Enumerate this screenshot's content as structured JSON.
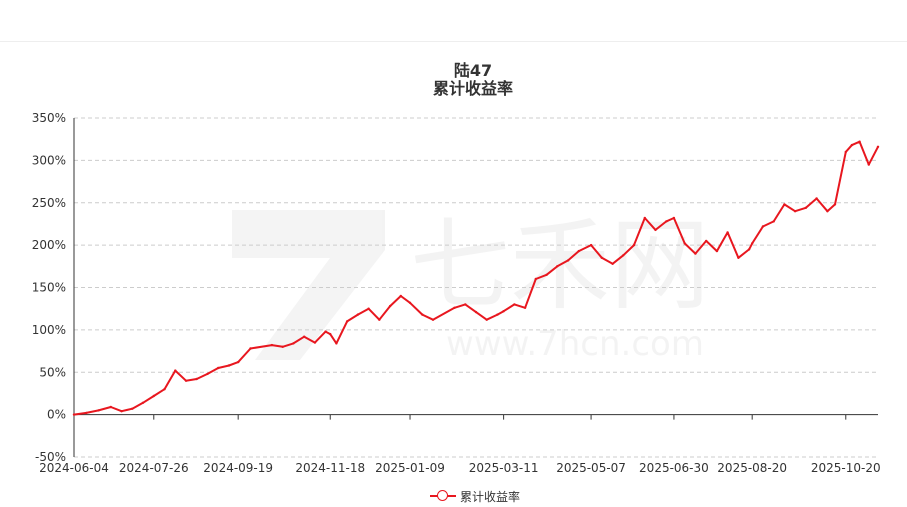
{
  "title": "陆47",
  "subtitle": "累计收益率",
  "watermark_text": "七禾网",
  "watermark_url": "www.7hcn.com",
  "colors": {
    "line": "#e8171f",
    "grid": "#cccccc",
    "axis": "#333333"
  },
  "chart_data": {
    "type": "line",
    "title": "陆47",
    "subtitle": "累计收益率",
    "y_unit": "%",
    "ylim": [
      -50,
      350
    ],
    "yticks": [
      350,
      300,
      250,
      200,
      150,
      100,
      50,
      0,
      -50
    ],
    "xticks": [
      "2024-06-04",
      "2024-07-26",
      "2024-09-19",
      "2024-11-18",
      "2025-01-09",
      "2025-03-11",
      "2025-05-07",
      "2025-06-30",
      "2025-08-20",
      "2025-10-20"
    ],
    "x_range": [
      "2024-06-04",
      "2025-11-10"
    ],
    "grid": true,
    "legend_position": "bottom-center",
    "series": [
      {
        "name": "累计收益率",
        "x": [
          "2024-06-04",
          "2024-06-12",
          "2024-06-20",
          "2024-06-28",
          "2024-07-05",
          "2024-07-12",
          "2024-07-19",
          "2024-07-26",
          "2024-08-02",
          "2024-08-09",
          "2024-08-16",
          "2024-08-23",
          "2024-08-30",
          "2024-09-06",
          "2024-09-13",
          "2024-09-19",
          "2024-09-27",
          "2024-10-11",
          "2024-10-18",
          "2024-10-25",
          "2024-11-01",
          "2024-11-08",
          "2024-11-15",
          "2024-11-18",
          "2024-11-22",
          "2024-11-29",
          "2024-12-06",
          "2024-12-13",
          "2024-12-20",
          "2024-12-27",
          "2025-01-03",
          "2025-01-09",
          "2025-01-17",
          "2025-01-24",
          "2025-02-07",
          "2025-02-14",
          "2025-02-21",
          "2025-02-28",
          "2025-03-07",
          "2025-03-11",
          "2025-03-18",
          "2025-03-25",
          "2025-04-01",
          "2025-04-08",
          "2025-04-15",
          "2025-04-22",
          "2025-04-29",
          "2025-05-07",
          "2025-05-14",
          "2025-05-21",
          "2025-05-28",
          "2025-06-04",
          "2025-06-11",
          "2025-06-18",
          "2025-06-25",
          "2025-06-30",
          "2025-07-07",
          "2025-07-14",
          "2025-07-21",
          "2025-07-28",
          "2025-08-04",
          "2025-08-11",
          "2025-08-18",
          "2025-08-20",
          "2025-08-27",
          "2025-09-03",
          "2025-09-10",
          "2025-09-17",
          "2025-09-24",
          "2025-10-01",
          "2025-10-08",
          "2025-10-13",
          "2025-10-20",
          "2025-10-24",
          "2025-10-29",
          "2025-11-04",
          "2025-11-10"
        ],
        "values": [
          0,
          2,
          5,
          9,
          4,
          7,
          14,
          22,
          30,
          52,
          40,
          42,
          48,
          55,
          58,
          62,
          78,
          82,
          80,
          84,
          92,
          85,
          98,
          95,
          84,
          110,
          118,
          125,
          112,
          128,
          140,
          132,
          118,
          112,
          126,
          130,
          121,
          112,
          118,
          122,
          130,
          126,
          160,
          165,
          175,
          182,
          193,
          200,
          185,
          178,
          188,
          200,
          232,
          218,
          228,
          232,
          202,
          190,
          205,
          193,
          215,
          185,
          195,
          202,
          222,
          228,
          248,
          240,
          244,
          255,
          240,
          248,
          310,
          318,
          322,
          295,
          316
        ]
      }
    ]
  }
}
